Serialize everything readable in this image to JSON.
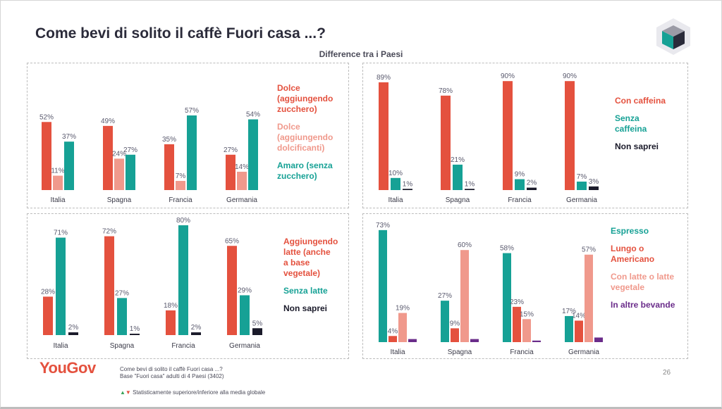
{
  "title": "Come bevi di solito il caffè Fuori casa ...?",
  "subtitle": "Difference tra i Paesi",
  "colors": {
    "red": "#e4513e",
    "salmon": "#f0998c",
    "teal": "#16a195",
    "black": "#1a1a2a",
    "purple": "#6a2c8a"
  },
  "chart_data": [
    {
      "type": "bar",
      "categories": [
        "Italia",
        "Spagna",
        "Francia",
        "Germania"
      ],
      "series": [
        {
          "name": "Dolce (aggiungendo zucchero)",
          "values": [
            52,
            49,
            35,
            27
          ],
          "color": "#e4513e"
        },
        {
          "name": "Dolce (aggiungendo dolcificanti)",
          "values": [
            11,
            24,
            7,
            14
          ],
          "color": "#f0998c"
        },
        {
          "name": "Amaro (senza zucchero)",
          "values": [
            37,
            27,
            57,
            54
          ],
          "color": "#16a195"
        }
      ],
      "legend_lines": [
        {
          "lines": [
            "Dolce",
            "(aggiungendo",
            "zucchero)"
          ],
          "color": "#e4513e"
        },
        {
          "lines": [
            "Dolce",
            "(aggiungendo",
            "dolcificanti)"
          ],
          "color": "#f0998c"
        },
        {
          "lines": [
            "Amaro (senza",
            "zucchero)"
          ],
          "color": "#16a195"
        }
      ],
      "ylim": [
        0,
        100
      ]
    },
    {
      "type": "bar",
      "categories": [
        "Italia",
        "Spagna",
        "Francia",
        "Germania"
      ],
      "series": [
        {
          "name": "Con caffeina",
          "values": [
            89,
            78,
            90,
            90
          ],
          "color": "#e4513e"
        },
        {
          "name": "Senza caffeina",
          "values": [
            10,
            21,
            9,
            7
          ],
          "color": "#16a195"
        },
        {
          "name": "Non saprei",
          "values": [
            1,
            1,
            2,
            3
          ],
          "color": "#1a1a2a"
        }
      ],
      "legend_lines": [
        {
          "lines": [
            "Con caffeina"
          ],
          "color": "#e4513e"
        },
        {
          "lines": [
            "Senza",
            "caffeina"
          ],
          "color": "#16a195"
        },
        {
          "lines": [
            "Non saprei"
          ],
          "color": "#1a1a2a"
        }
      ],
      "ylim": [
        0,
        100
      ]
    },
    {
      "type": "bar",
      "categories": [
        "Italia",
        "Spagna",
        "Francia",
        "Germania"
      ],
      "series": [
        {
          "name": "Aggiungendo latte (anche a base vegetale)",
          "values": [
            28,
            72,
            18,
            65
          ],
          "color": "#e4513e"
        },
        {
          "name": "Senza latte",
          "values": [
            71,
            27,
            80,
            29
          ],
          "color": "#16a195"
        },
        {
          "name": "Non saprei",
          "values": [
            2,
            1,
            2,
            5
          ],
          "color": "#1a1a2a"
        }
      ],
      "legend_lines": [
        {
          "lines": [
            "Aggiungendo",
            "latte (anche",
            "a base",
            "vegetale)"
          ],
          "color": "#e4513e"
        },
        {
          "lines": [
            "Senza latte"
          ],
          "color": "#16a195"
        },
        {
          "lines": [
            "Non saprei"
          ],
          "color": "#1a1a2a"
        }
      ],
      "ylim": [
        0,
        100
      ]
    },
    {
      "type": "bar",
      "categories": [
        "Italia",
        "Spagna",
        "Francia",
        "Germania"
      ],
      "series": [
        {
          "name": "Espresso",
          "values": [
            73,
            27,
            58,
            17
          ],
          "color": "#16a195"
        },
        {
          "name": "Lungo o Americano",
          "values": [
            4,
            9,
            23,
            14
          ],
          "color": "#e4513e"
        },
        {
          "name": "Con latte o latte vegetale",
          "values": [
            19,
            60,
            15,
            57
          ],
          "color": "#f0998c"
        },
        {
          "name": "In altre bevande",
          "values": [
            2,
            2,
            1,
            3
          ],
          "color": "#6a2c8a"
        }
      ],
      "label_hidden": [
        [
          false,
          false,
          false,
          false
        ],
        [
          false,
          false,
          false,
          false
        ],
        [
          false,
          false,
          false,
          false
        ],
        [
          true,
          true,
          true,
          true
        ]
      ],
      "legend_lines": [
        {
          "lines": [
            "Espresso"
          ],
          "color": "#16a195"
        },
        {
          "lines": [
            "Lungo o",
            "Americano"
          ],
          "color": "#e4513e"
        },
        {
          "lines": [
            "Con latte o latte",
            "vegetale"
          ],
          "color": "#f0998c"
        },
        {
          "lines": [
            "In altre bevande"
          ],
          "color": "#6a2c8a"
        }
      ],
      "ylim": [
        0,
        100
      ]
    }
  ],
  "footer": {
    "logo": "YouGov",
    "question": "Come bevi di solito il caffè Fuori casa ...?",
    "base": "Base \"Fuori casa\" adulti di 4 Paesi (3402)",
    "note": "Statisticamente superiore/inferiore alla media globale",
    "page": "26"
  }
}
